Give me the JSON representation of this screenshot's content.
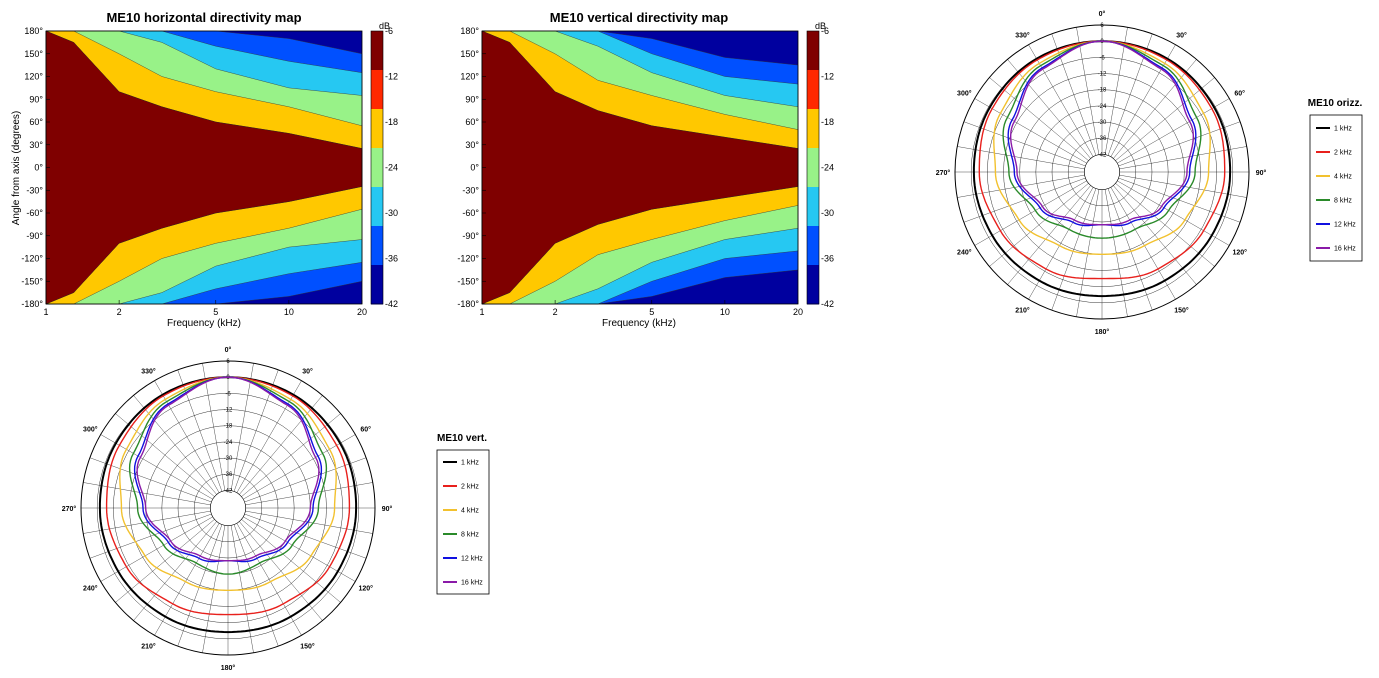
{
  "chart_data": [
    {
      "type": "heatmap",
      "id": "hmap",
      "title": "ME10 horizontal directivity map",
      "xlabel": "Frequency (kHz)",
      "ylabel": "Angle from axis (degrees)",
      "x_scale": "log",
      "xlim": [
        1,
        20
      ],
      "ylim": [
        -180,
        180
      ],
      "x_ticks": [
        "1",
        "2",
        "5",
        "10",
        "20"
      ],
      "y_ticks": [
        "180°",
        "150°",
        "120°",
        "90°",
        "60°",
        "30°",
        "0°",
        "-30°",
        "-60°",
        "-90°",
        "-120°",
        "-150°",
        "-180°"
      ],
      "colorbar": {
        "unit": "dB",
        "ticks": [
          "-6",
          "-12",
          "-18",
          "-24",
          "-30",
          "-36",
          "-42"
        ],
        "range": [
          -42,
          -6
        ]
      },
      "color_levels": [
        {
          "level_db": -6,
          "color": "#7f0000"
        },
        {
          "level_db": -12,
          "color": "#ff2800"
        },
        {
          "level_db": -18,
          "color": "#ffc800"
        },
        {
          "level_db": -24,
          "color": "#98f288"
        },
        {
          "level_db": -30,
          "color": "#26c8f2"
        },
        {
          "level_db": -36,
          "color": "#0050ff"
        },
        {
          "level_db": -42,
          "color": "#00009f"
        }
      ],
      "contour_boundaries_deg": [
        {
          "freq_khz": [
            1,
            1.3,
            2,
            3,
            5,
            10,
            20
          ],
          "-6_edge": [
            180,
            165,
            100,
            80,
            60,
            45,
            25
          ]
        },
        {
          "freq_khz": [
            1,
            1.3,
            2,
            3,
            5,
            10,
            20
          ],
          "-12_edge": [
            180,
            180,
            150,
            120,
            100,
            80,
            55
          ]
        },
        {
          "freq_khz": [
            1,
            1.3,
            2,
            3,
            5,
            10,
            20
          ],
          "-18_edge": [
            180,
            180,
            180,
            165,
            130,
            105,
            95
          ]
        },
        {
          "freq_khz": [
            1,
            1.3,
            2,
            3,
            5,
            10,
            20
          ],
          "-24_edge": [
            180,
            180,
            180,
            180,
            160,
            140,
            125
          ]
        },
        {
          "freq_khz": [
            1,
            1.3,
            2,
            3,
            5,
            10,
            20
          ],
          "-30_edge": [
            180,
            180,
            180,
            180,
            180,
            170,
            150
          ]
        }
      ]
    },
    {
      "type": "heatmap",
      "id": "vmap",
      "title": "ME10 vertical directivity map",
      "xlabel": "Frequency (kHz)",
      "ylabel": "",
      "x_scale": "log",
      "xlim": [
        1,
        20
      ],
      "ylim": [
        -180,
        180
      ],
      "x_ticks": [
        "1",
        "2",
        "5",
        "10",
        "20"
      ],
      "y_ticks": [
        "180°",
        "150°",
        "120°",
        "90°",
        "60°",
        "30°",
        "0°",
        "-30°",
        "-60°",
        "-90°",
        "-120°",
        "-150°",
        "-180°"
      ],
      "colorbar": {
        "unit": "dB",
        "ticks": [
          "-6",
          "-12",
          "-18",
          "-24",
          "-30",
          "-36",
          "-42"
        ],
        "range": [
          -42,
          -6
        ]
      },
      "contour_boundaries_deg": [
        {
          "freq_khz": [
            1,
            1.3,
            2,
            3,
            5,
            10,
            20
          ],
          "-6_edge": [
            180,
            165,
            100,
            75,
            55,
            40,
            25
          ]
        },
        {
          "freq_khz": [
            1,
            1.3,
            2,
            3,
            5,
            10,
            20
          ],
          "-12_edge": [
            180,
            180,
            150,
            115,
            95,
            70,
            50
          ]
        },
        {
          "freq_khz": [
            1,
            1.3,
            2,
            3,
            5,
            10,
            20
          ],
          "-18_edge": [
            180,
            180,
            180,
            160,
            125,
            95,
            80
          ]
        },
        {
          "freq_khz": [
            1,
            1.3,
            2,
            3,
            5,
            10,
            20
          ],
          "-24_edge": [
            180,
            180,
            180,
            180,
            150,
            120,
            110
          ]
        },
        {
          "freq_khz": [
            1,
            1.3,
            2,
            3,
            5,
            10,
            20
          ],
          "-30_edge": [
            180,
            180,
            180,
            180,
            170,
            145,
            135
          ]
        }
      ]
    },
    {
      "type": "polar",
      "id": "porizz",
      "legend_title": "ME10 orizz.",
      "angle_labels": [
        "0°",
        "30°",
        "60°",
        "90°",
        "120°",
        "150°",
        "180°",
        "210°",
        "240°",
        "270°",
        "300°",
        "330°"
      ],
      "radial_labels": [
        "6",
        "0",
        "-6",
        "-12",
        "-18",
        "-24",
        "-30",
        "-36",
        "-42"
      ],
      "rlim_db": [
        -42,
        6
      ],
      "series": [
        {
          "name": "1 kHz",
          "color": "#000000",
          "db_at_deg": [
            0,
            0,
            -0.5,
            -1,
            -1.5,
            -2,
            -2.5,
            -2,
            -1.5,
            -1,
            -0.5,
            0,
            0
          ]
        },
        {
          "name": "2 kHz",
          "color": "#e8201c",
          "db_at_deg": [
            0,
            -0.5,
            -1.5,
            -3,
            -5,
            -7,
            -9,
            -7,
            -5,
            -3,
            -1.5,
            -0.5,
            0
          ]
        },
        {
          "name": "4 kHz",
          "color": "#f2c12e",
          "db_at_deg": [
            0,
            -2,
            -5,
            -9,
            -13,
            -17,
            -18,
            -17,
            -13,
            -9,
            -5,
            -2,
            0
          ]
        },
        {
          "name": "8 kHz",
          "color": "#2a8a2a",
          "db_at_deg": [
            0,
            -3,
            -8,
            -14,
            -20,
            -24,
            -24,
            -24,
            -20,
            -14,
            -8,
            -3,
            0
          ]
        },
        {
          "name": "12 kHz",
          "color": "#1010e0",
          "db_at_deg": [
            0,
            -4,
            -10,
            -16,
            -22,
            -27,
            -29,
            -27,
            -22,
            -16,
            -10,
            -4,
            0
          ]
        },
        {
          "name": "16 kHz",
          "color": "#8a1aa8",
          "db_at_deg": [
            0,
            -4.5,
            -11,
            -17,
            -23,
            -28,
            -29,
            -28,
            -23,
            -17,
            -11,
            -4.5,
            0
          ]
        }
      ]
    },
    {
      "type": "polar",
      "id": "pvert",
      "legend_title": "ME10 vert.",
      "angle_labels": [
        "0°",
        "30°",
        "60°",
        "90°",
        "120°",
        "150°",
        "180°",
        "210°",
        "240°",
        "270°",
        "300°",
        "330°"
      ],
      "radial_labels": [
        "6",
        "0",
        "-6",
        "-12",
        "-18",
        "-24",
        "-30",
        "-36",
        "-42"
      ],
      "rlim_db": [
        -42,
        6
      ],
      "series": [
        {
          "name": "1 kHz",
          "color": "#000000",
          "db_at_deg": [
            0,
            0,
            -0.5,
            -1,
            -1.5,
            -2,
            -2.5,
            -2,
            -1.5,
            -1,
            -0.5,
            0,
            0
          ]
        },
        {
          "name": "2 kHz",
          "color": "#e8201c",
          "db_at_deg": [
            0,
            -0.5,
            -2,
            -3.5,
            -5,
            -7.5,
            -9,
            -7.5,
            -5,
            -3.5,
            -2,
            -0.5,
            0
          ]
        },
        {
          "name": "4 kHz",
          "color": "#f2c12e",
          "db_at_deg": [
            0,
            -2,
            -5,
            -9,
            -13,
            -17,
            -18,
            -17,
            -13,
            -9,
            -5,
            -2,
            0
          ]
        },
        {
          "name": "8 kHz",
          "color": "#2a8a2a",
          "db_at_deg": [
            0,
            -3,
            -8,
            -15,
            -21,
            -25,
            -24,
            -25,
            -21,
            -15,
            -8,
            -3,
            0
          ]
        },
        {
          "name": "12 kHz",
          "color": "#1010e0",
          "db_at_deg": [
            0,
            -4,
            -10,
            -17,
            -23,
            -27,
            -29,
            -27,
            -23,
            -17,
            -10,
            -4,
            0
          ]
        },
        {
          "name": "16 kHz",
          "color": "#8a1aa8",
          "db_at_deg": [
            0,
            -4.5,
            -11,
            -18,
            -24,
            -28,
            -29,
            -28,
            -24,
            -18,
            -11,
            -4.5,
            0
          ]
        }
      ]
    }
  ]
}
